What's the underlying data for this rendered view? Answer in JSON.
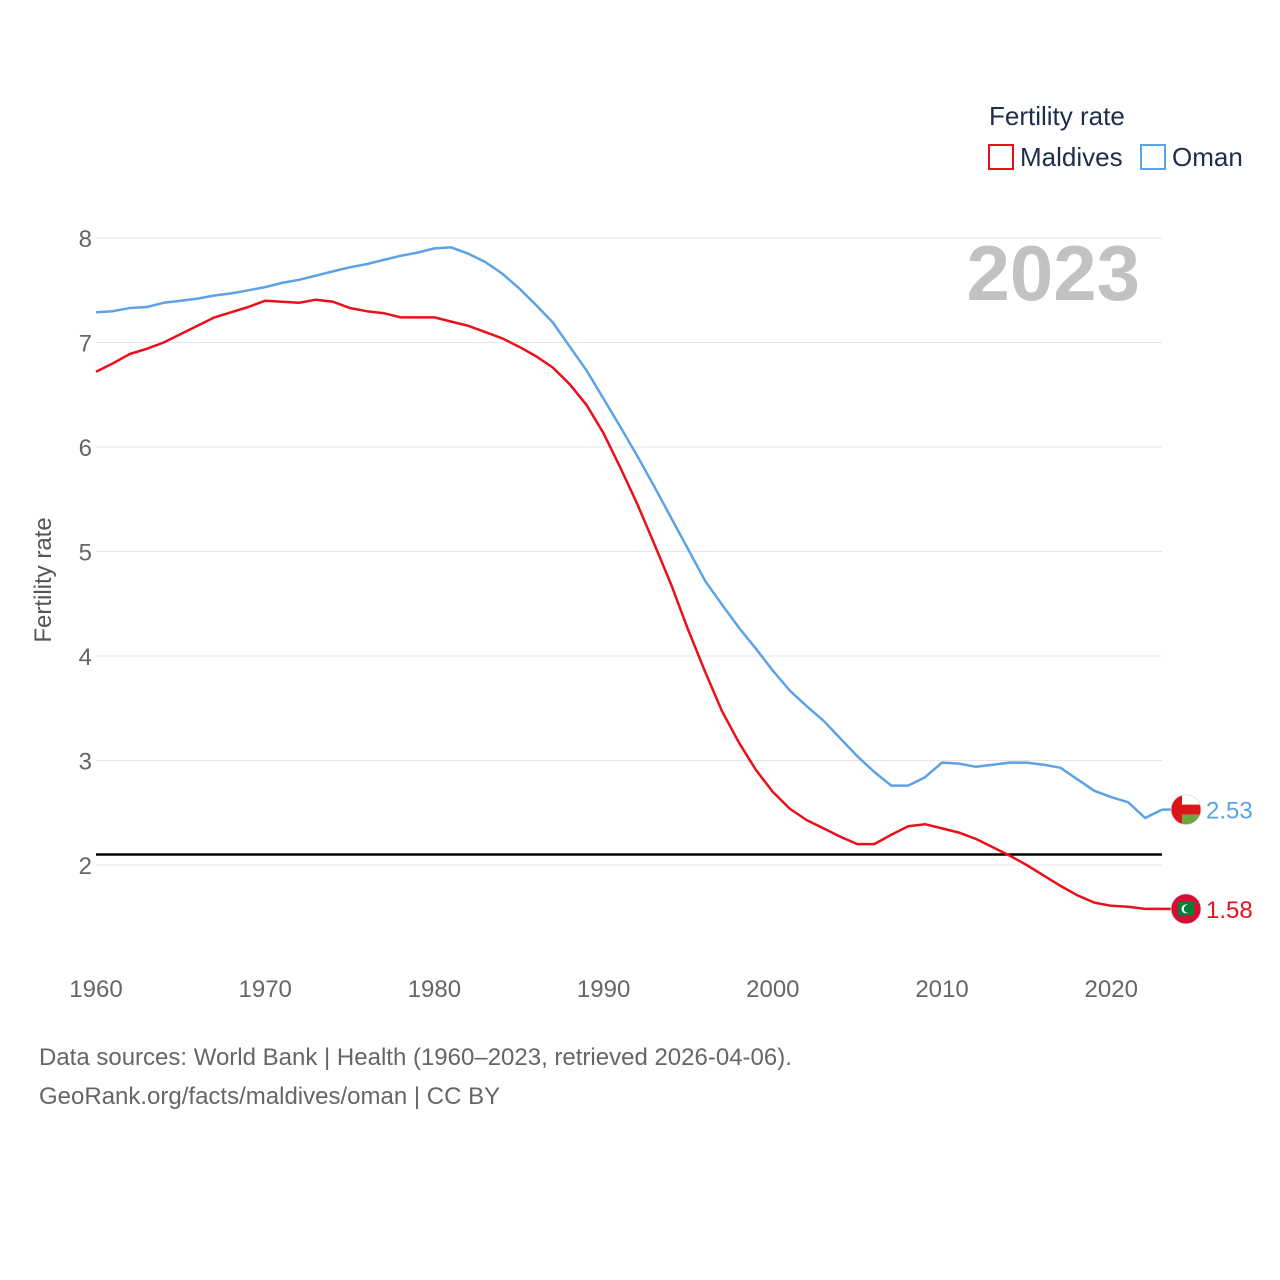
{
  "chart_data": {
    "type": "line",
    "title": "Fertility rate",
    "ylabel": "Fertility rate",
    "xlabel": "",
    "year_label": "2023",
    "xlim": [
      1960,
      2023
    ],
    "ylim": [
      1.0,
      8.0
    ],
    "x_ticks": [
      1960,
      1970,
      1980,
      1990,
      2000,
      2010,
      2020
    ],
    "y_ticks": [
      2,
      3,
      4,
      5,
      6,
      7,
      8
    ],
    "reference_line": {
      "value": 2.1,
      "color": "#000000"
    },
    "legend": {
      "title": "Fertility rate",
      "placement": "top-right"
    },
    "x": [
      1960,
      1961,
      1962,
      1963,
      1964,
      1965,
      1966,
      1967,
      1968,
      1969,
      1970,
      1971,
      1972,
      1973,
      1974,
      1975,
      1976,
      1977,
      1978,
      1979,
      1980,
      1981,
      1982,
      1983,
      1984,
      1985,
      1986,
      1987,
      1988,
      1989,
      1990,
      1991,
      1992,
      1993,
      1994,
      1995,
      1996,
      1997,
      1998,
      1999,
      2000,
      2001,
      2002,
      2003,
      2004,
      2005,
      2006,
      2007,
      2008,
      2009,
      2010,
      2011,
      2012,
      2013,
      2014,
      2015,
      2016,
      2017,
      2018,
      2019,
      2020,
      2021,
      2022,
      2023
    ],
    "series": [
      {
        "name": "Maldives",
        "color": "#e8111b",
        "end_label": "1.58",
        "flag_icon": "maldives-flag-icon",
        "values": [
          6.72,
          6.8,
          6.89,
          6.94,
          7.0,
          7.08,
          7.16,
          7.24,
          7.29,
          7.34,
          7.4,
          7.39,
          7.38,
          7.41,
          7.39,
          7.33,
          7.3,
          7.28,
          7.24,
          7.24,
          7.24,
          7.2,
          7.16,
          7.1,
          7.04,
          6.96,
          6.87,
          6.76,
          6.6,
          6.4,
          6.13,
          5.8,
          5.45,
          5.07,
          4.68,
          4.25,
          3.85,
          3.47,
          3.17,
          2.91,
          2.7,
          2.54,
          2.43,
          2.35,
          2.27,
          2.2,
          2.2,
          2.29,
          2.37,
          2.39,
          2.35,
          2.31,
          2.25,
          2.17,
          2.09,
          2.0,
          1.9,
          1.8,
          1.71,
          1.64,
          1.61,
          1.6,
          1.58,
          1.58
        ]
      },
      {
        "name": "Oman",
        "color": "#5da2e6",
        "end_label": "2.53",
        "flag_icon": "oman-flag-icon",
        "values": [
          7.29,
          7.3,
          7.33,
          7.34,
          7.38,
          7.4,
          7.42,
          7.45,
          7.47,
          7.5,
          7.53,
          7.57,
          7.6,
          7.64,
          7.68,
          7.72,
          7.75,
          7.79,
          7.83,
          7.86,
          7.9,
          7.91,
          7.85,
          7.77,
          7.66,
          7.52,
          7.36,
          7.19,
          6.96,
          6.73,
          6.46,
          6.19,
          5.91,
          5.62,
          5.32,
          5.02,
          4.72,
          4.49,
          4.27,
          4.07,
          3.86,
          3.67,
          3.52,
          3.38,
          3.21,
          3.04,
          2.89,
          2.76,
          2.76,
          2.84,
          2.98,
          2.97,
          2.94,
          2.96,
          2.98,
          2.98,
          2.96,
          2.93,
          2.82,
          2.71,
          2.65,
          2.6,
          2.45,
          2.53
        ]
      }
    ]
  },
  "footer": {
    "line1": "Data sources: World Bank | Health (1960–2023, retrieved 2026-04-06).",
    "line2": "GeoRank.org/facts/maldives/oman | CC BY"
  }
}
